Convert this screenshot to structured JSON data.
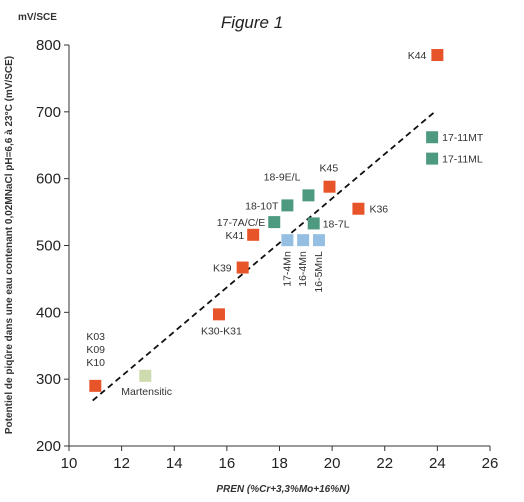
{
  "chart_data": {
    "type": "scatter",
    "title": "Figure 1",
    "unit_label": "mV/SCE",
    "xlabel": "PREN (%Cr+3,3%Mo+16%N)",
    "ylabel": "Potentiel de piqûre dans une eau contenant 0,02MNaCl pH=6,6 à 23°C (mV/SCE)",
    "xlim": [
      10,
      26
    ],
    "ylim": [
      200,
      800
    ],
    "xticks": [
      "10",
      "12",
      "14",
      "16",
      "18",
      "20",
      "22",
      "24",
      "26"
    ],
    "yticks": [
      "200",
      "300",
      "400",
      "500",
      "600",
      "700",
      "800"
    ],
    "grid": false,
    "colors": {
      "orange": "#e8542a",
      "green": "#4e9a80",
      "blue": "#94bfe2",
      "olive": "#cddbae",
      "trend": "#111111"
    },
    "trend_line": {
      "style": "dashed",
      "x": [
        10.9,
        23.9
      ],
      "y": [
        268,
        700
      ]
    },
    "points": [
      {
        "label": "K03\nK09\nK10",
        "x": 11.0,
        "y": 290,
        "color": "orange"
      },
      {
        "label": "Martensitic",
        "x": 12.9,
        "y": 305,
        "color": "olive"
      },
      {
        "label": "K30-K31",
        "x": 15.7,
        "y": 397,
        "color": "orange"
      },
      {
        "label": "K39",
        "x": 16.6,
        "y": 467,
        "color": "orange"
      },
      {
        "label": "K41",
        "x": 17.0,
        "y": 516,
        "color": "orange"
      },
      {
        "label": "17-7A/C/E",
        "x": 17.8,
        "y": 535,
        "color": "green"
      },
      {
        "label": "18-10T",
        "x": 18.3,
        "y": 560,
        "color": "green"
      },
      {
        "label": "18-9E/L",
        "x": 19.1,
        "y": 575,
        "color": "green"
      },
      {
        "label": "K45",
        "x": 19.9,
        "y": 588,
        "color": "orange"
      },
      {
        "label": "18-7L",
        "x": 19.3,
        "y": 533,
        "color": "green"
      },
      {
        "label": "K36",
        "x": 21.0,
        "y": 555,
        "color": "orange"
      },
      {
        "label": "17-4Mn",
        "x": 18.3,
        "y": 508,
        "color": "blue"
      },
      {
        "label": "16-4Mn",
        "x": 18.9,
        "y": 508,
        "color": "blue"
      },
      {
        "label": "16-5MnL",
        "x": 19.5,
        "y": 508,
        "color": "blue"
      },
      {
        "label": "K44",
        "x": 24.0,
        "y": 785,
        "color": "orange"
      },
      {
        "label": "17-11MT",
        "x": 23.8,
        "y": 662,
        "color": "green"
      },
      {
        "label": "17-11ML",
        "x": 23.8,
        "y": 630,
        "color": "green"
      }
    ]
  }
}
